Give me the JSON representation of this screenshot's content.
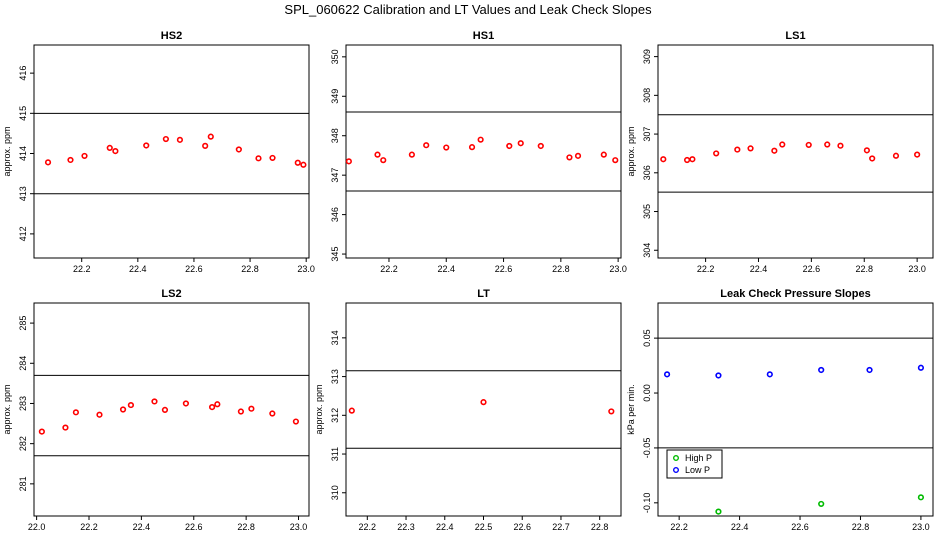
{
  "page": {
    "title": "SPL_060622  Calibration and LT Values and Leak Check Slopes"
  },
  "chart_data": [
    {
      "type": "scatter",
      "title": "HS2",
      "ylabel": "approx. ppm",
      "xlim": [
        22.03,
        23.01
      ],
      "ylim": [
        411.4,
        416.7
      ],
      "xticks": [
        22.2,
        22.4,
        22.6,
        22.8,
        23.0
      ],
      "xtick_labels": [
        "22.2",
        "22.4",
        "22.6",
        "22.8",
        "23.0"
      ],
      "yticks": [
        412,
        413,
        414,
        415,
        416
      ],
      "ytick_labels": [
        "412",
        "413",
        "414",
        "415",
        "416"
      ],
      "hlines": [
        415,
        413
      ],
      "series": [
        {
          "marker": "circle",
          "color": "#ff0000",
          "points": [
            [
              22.08,
              413.78
            ],
            [
              22.16,
              413.84
            ],
            [
              22.21,
              413.94
            ],
            [
              22.3,
              414.14
            ],
            [
              22.32,
              414.06
            ],
            [
              22.43,
              414.2
            ],
            [
              22.5,
              414.36
            ],
            [
              22.55,
              414.34
            ],
            [
              22.64,
              414.19
            ],
            [
              22.66,
              414.42
            ],
            [
              22.76,
              414.1
            ],
            [
              22.83,
              413.88
            ],
            [
              22.88,
              413.89
            ],
            [
              22.97,
              413.77
            ],
            [
              22.99,
              413.72
            ]
          ]
        }
      ]
    },
    {
      "type": "scatter",
      "title": "HS1",
      "ylabel": "",
      "xlim": [
        22.05,
        23.01
      ],
      "ylim": [
        344.9,
        350.3
      ],
      "xticks": [
        22.2,
        22.4,
        22.6,
        22.8,
        23.0
      ],
      "xtick_labels": [
        "22.2",
        "22.4",
        "22.6",
        "22.8",
        "23.0"
      ],
      "yticks": [
        345,
        346,
        347,
        348,
        349,
        350
      ],
      "ytick_labels": [
        "345",
        "346",
        "347",
        "348",
        "349",
        "350"
      ],
      "hlines": [
        348.6,
        346.6
      ],
      "series": [
        {
          "marker": "circle",
          "color": "#ff0000",
          "points": [
            [
              22.06,
              347.35
            ],
            [
              22.16,
              347.52
            ],
            [
              22.18,
              347.38
            ],
            [
              22.28,
              347.52
            ],
            [
              22.33,
              347.76
            ],
            [
              22.4,
              347.7
            ],
            [
              22.49,
              347.71
            ],
            [
              22.52,
              347.9
            ],
            [
              22.62,
              347.74
            ],
            [
              22.66,
              347.81
            ],
            [
              22.73,
              347.74
            ],
            [
              22.83,
              347.45
            ],
            [
              22.86,
              347.49
            ],
            [
              22.95,
              347.52
            ],
            [
              22.99,
              347.38
            ]
          ]
        }
      ]
    },
    {
      "type": "scatter",
      "title": "LS1",
      "ylabel": "approx. ppm",
      "xlim": [
        22.02,
        23.06
      ],
      "ylim": [
        303.8,
        309.3
      ],
      "xticks": [
        22.2,
        22.4,
        22.6,
        22.8,
        23.0
      ],
      "xtick_labels": [
        "22.2",
        "22.4",
        "22.6",
        "22.8",
        "23.0"
      ],
      "yticks": [
        304,
        305,
        306,
        307,
        308,
        309
      ],
      "ytick_labels": [
        "304",
        "305",
        "306",
        "307",
        "308",
        "309"
      ],
      "hlines": [
        307.5,
        305.5
      ],
      "series": [
        {
          "marker": "circle",
          "color": "#ff0000",
          "points": [
            [
              22.04,
              306.35
            ],
            [
              22.13,
              306.33
            ],
            [
              22.15,
              306.35
            ],
            [
              22.24,
              306.5
            ],
            [
              22.32,
              306.6
            ],
            [
              22.37,
              306.63
            ],
            [
              22.46,
              306.57
            ],
            [
              22.49,
              306.73
            ],
            [
              22.59,
              306.72
            ],
            [
              22.66,
              306.73
            ],
            [
              22.71,
              306.7
            ],
            [
              22.81,
              306.58
            ],
            [
              22.83,
              306.37
            ],
            [
              22.92,
              306.44
            ],
            [
              23.0,
              306.47
            ]
          ]
        }
      ]
    },
    {
      "type": "scatter",
      "title": "LS2",
      "ylabel": "approx. ppm",
      "xlim": [
        21.99,
        23.04
      ],
      "ylim": [
        280.2,
        285.5
      ],
      "xticks": [
        22.0,
        22.2,
        22.4,
        22.6,
        22.8,
        23.0
      ],
      "xtick_labels": [
        "22.0",
        "22.2",
        "22.4",
        "22.6",
        "22.8",
        "23.0"
      ],
      "yticks": [
        281,
        282,
        283,
        284,
        285
      ],
      "ytick_labels": [
        "281",
        "282",
        "283",
        "284",
        "285"
      ],
      "hlines": [
        283.7,
        281.7
      ],
      "series": [
        {
          "marker": "circle",
          "color": "#ff0000",
          "points": [
            [
              22.02,
              282.3
            ],
            [
              22.11,
              282.4
            ],
            [
              22.15,
              282.78
            ],
            [
              22.24,
              282.72
            ],
            [
              22.33,
              282.85
            ],
            [
              22.36,
              282.96
            ],
            [
              22.45,
              283.05
            ],
            [
              22.49,
              282.84
            ],
            [
              22.57,
              283.0
            ],
            [
              22.67,
              282.91
            ],
            [
              22.69,
              282.98
            ],
            [
              22.78,
              282.8
            ],
            [
              22.82,
              282.87
            ],
            [
              22.9,
              282.75
            ],
            [
              22.99,
              282.55
            ]
          ]
        }
      ]
    },
    {
      "type": "scatter",
      "title": "LT",
      "ylabel": "approx. ppm",
      "xlim": [
        22.145,
        22.855
      ],
      "ylim": [
        309.4,
        314.9
      ],
      "xticks": [
        22.2,
        22.3,
        22.4,
        22.5,
        22.6,
        22.7,
        22.8
      ],
      "xtick_labels": [
        "22.2",
        "22.3",
        "22.4",
        "22.5",
        "22.6",
        "22.7",
        "22.8"
      ],
      "yticks": [
        310,
        311,
        312,
        313,
        314
      ],
      "ytick_labels": [
        "310",
        "311",
        "312",
        "313",
        "314"
      ],
      "hlines": [
        313.15,
        311.15
      ],
      "series": [
        {
          "marker": "circle",
          "color": "#ff0000",
          "points": [
            [
              22.16,
              312.12
            ],
            [
              22.5,
              312.34
            ],
            [
              22.83,
              312.1
            ]
          ]
        }
      ]
    },
    {
      "type": "scatter",
      "title": "Leak Check Pressure Slopes",
      "ylabel": "kPa per min.",
      "xlim": [
        22.13,
        23.04
      ],
      "ylim": [
        -0.112,
        0.082
      ],
      "xticks": [
        22.2,
        22.4,
        22.6,
        22.8,
        23.0
      ],
      "xtick_labels": [
        "22.2",
        "22.4",
        "22.6",
        "22.8",
        "23.0"
      ],
      "yticks": [
        -0.1,
        -0.05,
        0.0,
        0.05
      ],
      "ytick_labels": [
        "-0.10",
        "-0.05",
        "0.00",
        "0.05"
      ],
      "hlines": [
        0.05,
        -0.05
      ],
      "legend": {
        "position": "bottom-left",
        "entries": [
          {
            "label": "High P",
            "color": "#00bb00"
          },
          {
            "label": "Low P",
            "color": "#0000ff"
          }
        ]
      },
      "series": [
        {
          "name": "High P",
          "marker": "circle",
          "color": "#00bb00",
          "points": [
            [
              22.33,
              -0.108
            ],
            [
              22.67,
              -0.101
            ],
            [
              23.0,
              -0.095
            ]
          ]
        },
        {
          "name": "Low P",
          "marker": "circle",
          "color": "#0000ff",
          "points": [
            [
              22.16,
              0.017
            ],
            [
              22.33,
              0.016
            ],
            [
              22.5,
              0.017
            ],
            [
              22.67,
              0.021
            ],
            [
              22.83,
              0.021
            ],
            [
              23.0,
              0.023
            ]
          ]
        }
      ]
    }
  ]
}
